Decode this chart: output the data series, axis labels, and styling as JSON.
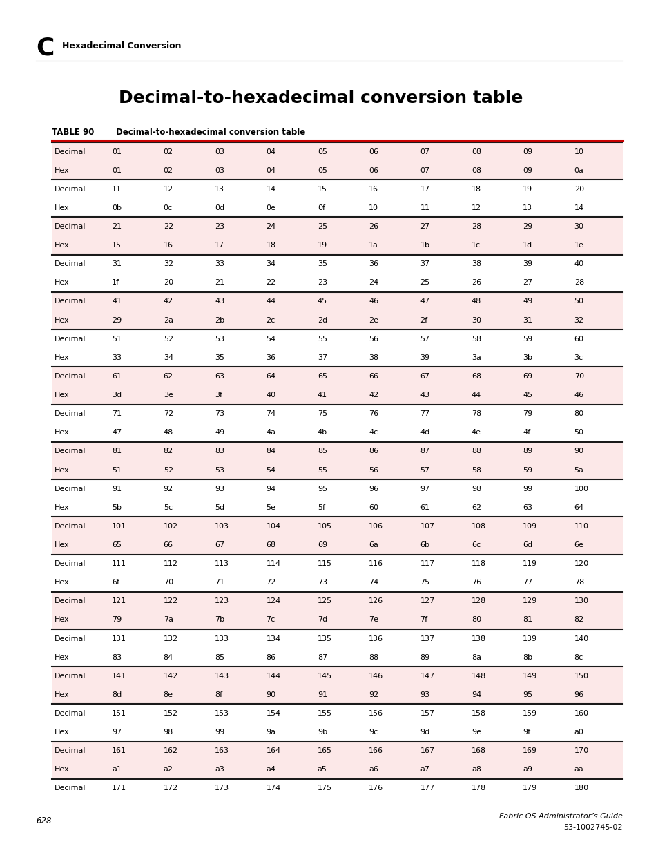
{
  "title": "Decimal-to-hexadecimal conversion table",
  "table_label": "TABLE 90",
  "table_caption": "Decimal-to-hexadecimal conversion table",
  "header_label": "C",
  "header_subtitle": "Hexadecimal Conversion",
  "page_number": "628",
  "footer_right1": "Fabric OS Administrator’s Guide",
  "footer_right2": "53-1002745-02",
  "rows": [
    [
      "Decimal",
      "01",
      "02",
      "03",
      "04",
      "05",
      "06",
      "07",
      "08",
      "09",
      "10"
    ],
    [
      "Hex",
      "01",
      "02",
      "03",
      "04",
      "05",
      "06",
      "07",
      "08",
      "09",
      "0a"
    ],
    [
      "Decimal",
      "11",
      "12",
      "13",
      "14",
      "15",
      "16",
      "17",
      "18",
      "19",
      "20"
    ],
    [
      "Hex",
      "0b",
      "0c",
      "0d",
      "0e",
      "0f",
      "10",
      "11",
      "12",
      "13",
      "14"
    ],
    [
      "Decimal",
      "21",
      "22",
      "23",
      "24",
      "25",
      "26",
      "27",
      "28",
      "29",
      "30"
    ],
    [
      "Hex",
      "15",
      "16",
      "17",
      "18",
      "19",
      "1a",
      "1b",
      "1c",
      "1d",
      "1e"
    ],
    [
      "Decimal",
      "31",
      "32",
      "33",
      "34",
      "35",
      "36",
      "37",
      "38",
      "39",
      "40"
    ],
    [
      "Hex",
      "1f",
      "20",
      "21",
      "22",
      "23",
      "24",
      "25",
      "26",
      "27",
      "28"
    ],
    [
      "Decimal",
      "41",
      "42",
      "43",
      "44",
      "45",
      "46",
      "47",
      "48",
      "49",
      "50"
    ],
    [
      "Hex",
      "29",
      "2a",
      "2b",
      "2c",
      "2d",
      "2e",
      "2f",
      "30",
      "31",
      "32"
    ],
    [
      "Decimal",
      "51",
      "52",
      "53",
      "54",
      "55",
      "56",
      "57",
      "58",
      "59",
      "60"
    ],
    [
      "Hex",
      "33",
      "34",
      "35",
      "36",
      "37",
      "38",
      "39",
      "3a",
      "3b",
      "3c"
    ],
    [
      "Decimal",
      "61",
      "62",
      "63",
      "64",
      "65",
      "66",
      "67",
      "68",
      "69",
      "70"
    ],
    [
      "Hex",
      "3d",
      "3e",
      "3f",
      "40",
      "41",
      "42",
      "43",
      "44",
      "45",
      "46"
    ],
    [
      "Decimal",
      "71",
      "72",
      "73",
      "74",
      "75",
      "76",
      "77",
      "78",
      "79",
      "80"
    ],
    [
      "Hex",
      "47",
      "48",
      "49",
      "4a",
      "4b",
      "4c",
      "4d",
      "4e",
      "4f",
      "50"
    ],
    [
      "Decimal",
      "81",
      "82",
      "83",
      "84",
      "85",
      "86",
      "87",
      "88",
      "89",
      "90"
    ],
    [
      "Hex",
      "51",
      "52",
      "53",
      "54",
      "55",
      "56",
      "57",
      "58",
      "59",
      "5a"
    ],
    [
      "Decimal",
      "91",
      "92",
      "93",
      "94",
      "95",
      "96",
      "97",
      "98",
      "99",
      "100"
    ],
    [
      "Hex",
      "5b",
      "5c",
      "5d",
      "5e",
      "5f",
      "60",
      "61",
      "62",
      "63",
      "64"
    ],
    [
      "Decimal",
      "101",
      "102",
      "103",
      "104",
      "105",
      "106",
      "107",
      "108",
      "109",
      "110"
    ],
    [
      "Hex",
      "65",
      "66",
      "67",
      "68",
      "69",
      "6a",
      "6b",
      "6c",
      "6d",
      "6e"
    ],
    [
      "Decimal",
      "111",
      "112",
      "113",
      "114",
      "115",
      "116",
      "117",
      "118",
      "119",
      "120"
    ],
    [
      "Hex",
      "6f",
      "70",
      "71",
      "72",
      "73",
      "74",
      "75",
      "76",
      "77",
      "78"
    ],
    [
      "Decimal",
      "121",
      "122",
      "123",
      "124",
      "125",
      "126",
      "127",
      "128",
      "129",
      "130"
    ],
    [
      "Hex",
      "79",
      "7a",
      "7b",
      "7c",
      "7d",
      "7e",
      "7f",
      "80",
      "81",
      "82"
    ],
    [
      "Decimal",
      "131",
      "132",
      "133",
      "134",
      "135",
      "136",
      "137",
      "138",
      "139",
      "140"
    ],
    [
      "Hex",
      "83",
      "84",
      "85",
      "86",
      "87",
      "88",
      "89",
      "8a",
      "8b",
      "8c"
    ],
    [
      "Decimal",
      "141",
      "142",
      "143",
      "144",
      "145",
      "146",
      "147",
      "148",
      "149",
      "150"
    ],
    [
      "Hex",
      "8d",
      "8e",
      "8f",
      "90",
      "91",
      "92",
      "93",
      "94",
      "95",
      "96"
    ],
    [
      "Decimal",
      "151",
      "152",
      "153",
      "154",
      "155",
      "156",
      "157",
      "158",
      "159",
      "160"
    ],
    [
      "Hex",
      "97",
      "98",
      "99",
      "9a",
      "9b",
      "9c",
      "9d",
      "9e",
      "9f",
      "a0"
    ],
    [
      "Decimal",
      "161",
      "162",
      "163",
      "164",
      "165",
      "166",
      "167",
      "168",
      "169",
      "170"
    ],
    [
      "Hex",
      "a1",
      "a2",
      "a3",
      "a4",
      "a5",
      "a6",
      "a7",
      "a8",
      "a9",
      "aa"
    ],
    [
      "Decimal",
      "171",
      "172",
      "173",
      "174",
      "175",
      "176",
      "177",
      "178",
      "179",
      "180"
    ]
  ],
  "bg_color_shaded": "#fce8e8",
  "bg_color_white": "#ffffff",
  "separator_color": "#1a1a1a",
  "header_line_color": "#cc0000"
}
